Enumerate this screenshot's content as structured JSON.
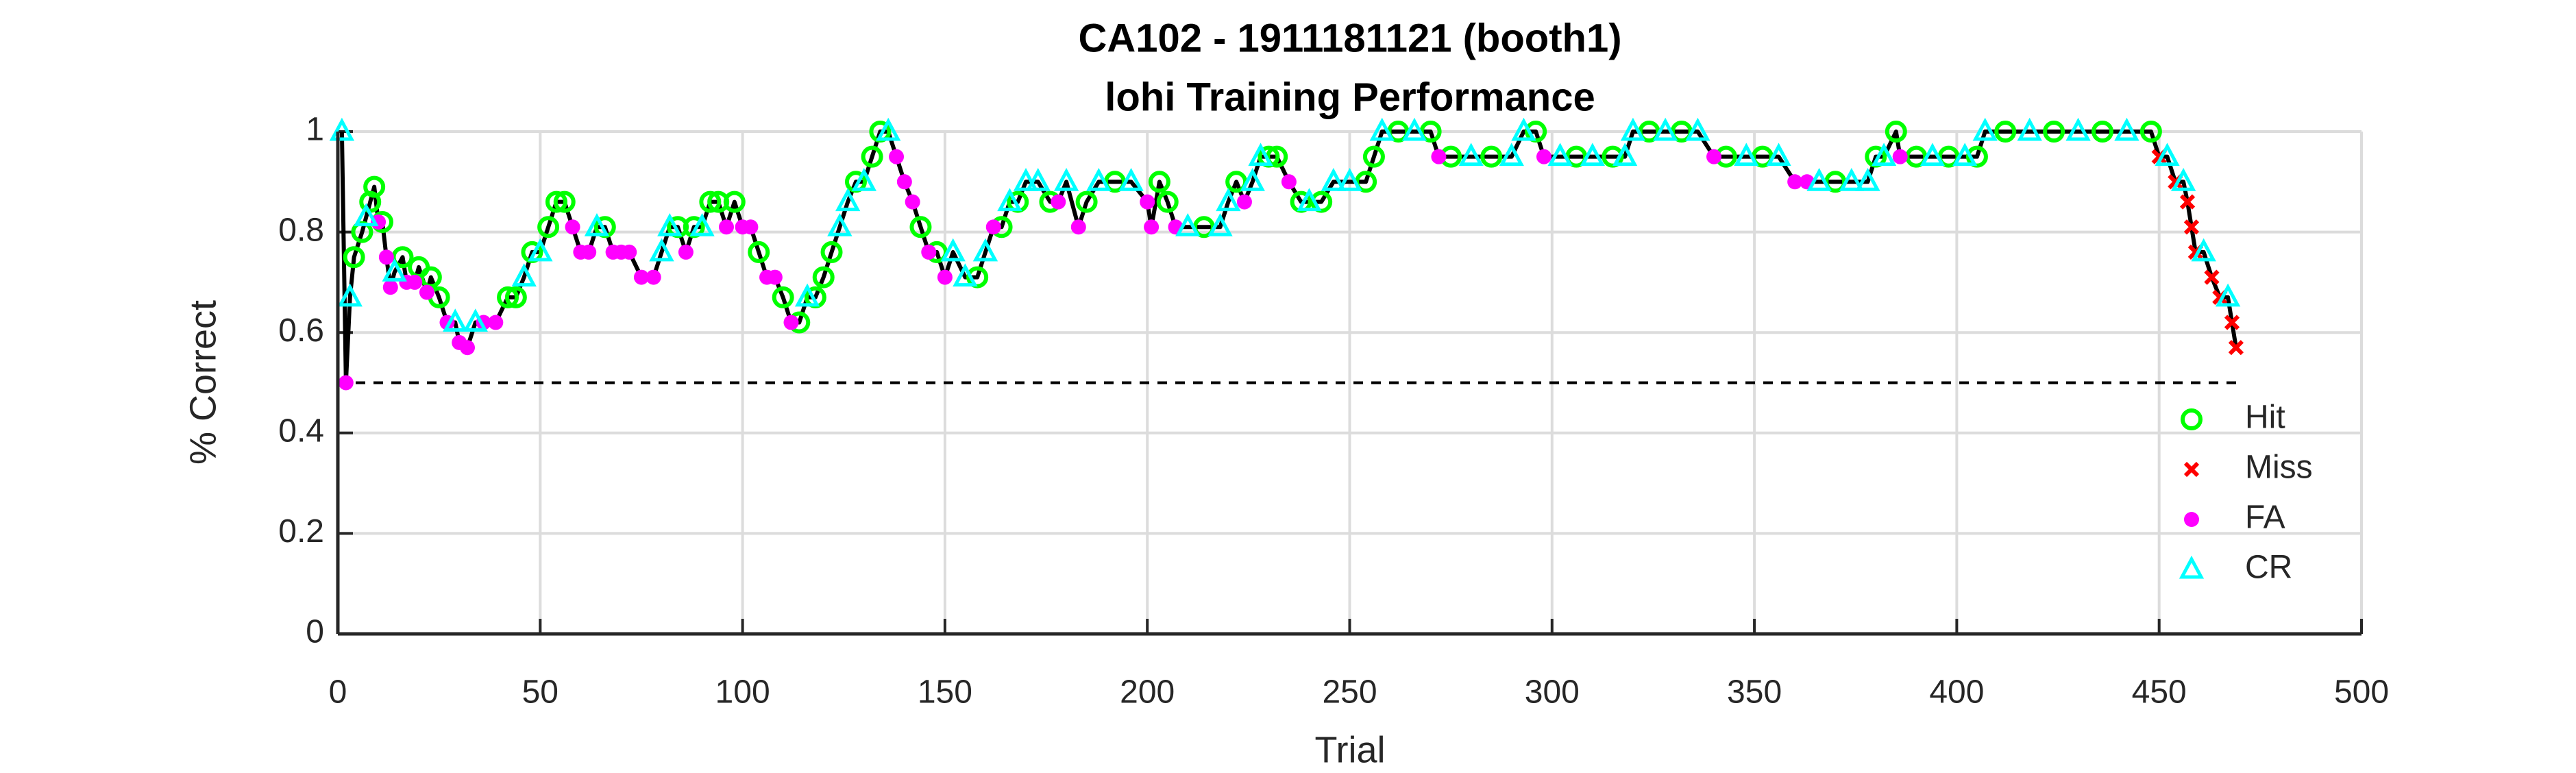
{
  "chart_data": {
    "type": "scatter",
    "title": [
      "CA102 - 1911181121 (booth1)",
      "lohi Training Performance"
    ],
    "xlabel": "Trial",
    "ylabel": "% Correct",
    "xlim": [
      0,
      500
    ],
    "xticks": [
      0,
      50,
      100,
      150,
      200,
      250,
      300,
      350,
      400,
      450,
      500
    ],
    "ylim": [
      0,
      1
    ],
    "yticks": [
      0,
      0.2,
      0.4,
      0.6,
      0.8,
      1
    ],
    "grid": true,
    "legend_location": "southeast",
    "connect_line": {
      "color": "#000000"
    },
    "reference_line": {
      "value": 0.5,
      "color": "#000000",
      "style": "dashed"
    },
    "series": [
      {
        "name": "Hit",
        "color": "#00ff00",
        "marker": "circle",
        "x": [
          4,
          6,
          8,
          9,
          11,
          16,
          20,
          23,
          25,
          42,
          44,
          48,
          52,
          54,
          56,
          66,
          84,
          88,
          92,
          94,
          98,
          104,
          110,
          114,
          118,
          120,
          122,
          128,
          132,
          134,
          144,
          148,
          158,
          164,
          168,
          176,
          185,
          192,
          203,
          205,
          214,
          222,
          230,
          232,
          238,
          243,
          254,
          256,
          262,
          270,
          275,
          285,
          296,
          306,
          315,
          324,
          332,
          343,
          352,
          370,
          380,
          385,
          390,
          398,
          405,
          412,
          424,
          436,
          448
        ],
        "values": [
          0.75,
          0.8,
          0.86,
          0.89,
          0.82,
          0.75,
          0.73,
          0.71,
          0.67,
          0.67,
          0.67,
          0.76,
          0.81,
          0.86,
          0.86,
          0.81,
          0.81,
          0.81,
          0.86,
          0.86,
          0.86,
          0.76,
          0.67,
          0.62,
          0.67,
          0.71,
          0.76,
          0.9,
          0.95,
          1,
          0.81,
          0.76,
          0.71,
          0.81,
          0.86,
          0.86,
          0.86,
          0.9,
          0.9,
          0.86,
          0.81,
          0.9,
          0.95,
          0.95,
          0.86,
          0.86,
          0.9,
          0.95,
          1,
          1,
          0.95,
          0.95,
          1,
          0.95,
          0.95,
          1,
          1,
          0.95,
          0.95,
          0.9,
          0.95,
          1,
          0.95,
          0.95,
          0.95,
          1,
          1,
          1,
          1
        ]
      },
      {
        "name": "Miss",
        "color": "#ff0000",
        "marker": "x",
        "x": [
          450,
          454,
          457,
          458,
          459,
          463,
          465,
          468,
          469
        ],
        "values": [
          0.95,
          0.9,
          0.86,
          0.81,
          0.76,
          0.71,
          0.67,
          0.62,
          0.57
        ]
      },
      {
        "name": "FA",
        "color": "#ff00ff",
        "marker": "dot",
        "x": [
          2,
          10,
          12,
          13,
          17,
          19,
          22,
          27,
          30,
          32,
          36,
          39,
          58,
          60,
          62,
          68,
          70,
          72,
          75,
          78,
          86,
          96,
          100,
          102,
          106,
          108,
          112,
          138,
          140,
          142,
          146,
          150,
          162,
          178,
          183,
          200,
          201,
          207,
          224,
          235,
          272,
          298,
          340,
          360,
          363,
          386
        ],
        "values": [
          0.5,
          0.82,
          0.75,
          0.69,
          0.7,
          0.7,
          0.68,
          0.62,
          0.58,
          0.57,
          0.62,
          0.62,
          0.81,
          0.76,
          0.76,
          0.76,
          0.76,
          0.76,
          0.71,
          0.71,
          0.76,
          0.81,
          0.81,
          0.81,
          0.71,
          0.71,
          0.62,
          0.95,
          0.9,
          0.86,
          0.76,
          0.71,
          0.81,
          0.86,
          0.81,
          0.86,
          0.81,
          0.81,
          0.86,
          0.9,
          0.95,
          0.95,
          0.95,
          0.9,
          0.9,
          0.95
        ]
      },
      {
        "name": "CR",
        "color": "#00ffff",
        "marker": "triangle",
        "x": [
          1,
          3,
          7,
          14,
          29,
          34,
          46,
          50,
          64,
          80,
          82,
          90,
          116,
          124,
          126,
          130,
          136,
          152,
          155,
          160,
          166,
          170,
          173,
          180,
          188,
          196,
          210,
          218,
          220,
          226,
          228,
          240,
          246,
          250,
          258,
          266,
          280,
          290,
          293,
          302,
          310,
          318,
          320,
          328,
          336,
          348,
          356,
          366,
          374,
          378,
          382,
          394,
          402,
          407,
          418,
          430,
          442,
          452,
          456,
          461,
          467
        ],
        "values": [
          1,
          0.67,
          0.83,
          0.72,
          0.62,
          0.62,
          0.71,
          0.76,
          0.81,
          0.76,
          0.81,
          0.81,
          0.67,
          0.81,
          0.86,
          0.9,
          1,
          0.76,
          0.71,
          0.76,
          0.86,
          0.9,
          0.9,
          0.9,
          0.9,
          0.9,
          0.81,
          0.81,
          0.86,
          0.9,
          0.95,
          0.86,
          0.9,
          0.9,
          1,
          1,
          0.95,
          0.95,
          1,
          0.95,
          0.95,
          0.95,
          1,
          1,
          1,
          0.95,
          0.95,
          0.9,
          0.9,
          0.9,
          0.95,
          0.95,
          0.95,
          1,
          1,
          1,
          1,
          0.95,
          0.9,
          0.76,
          0.67
        ]
      }
    ]
  }
}
